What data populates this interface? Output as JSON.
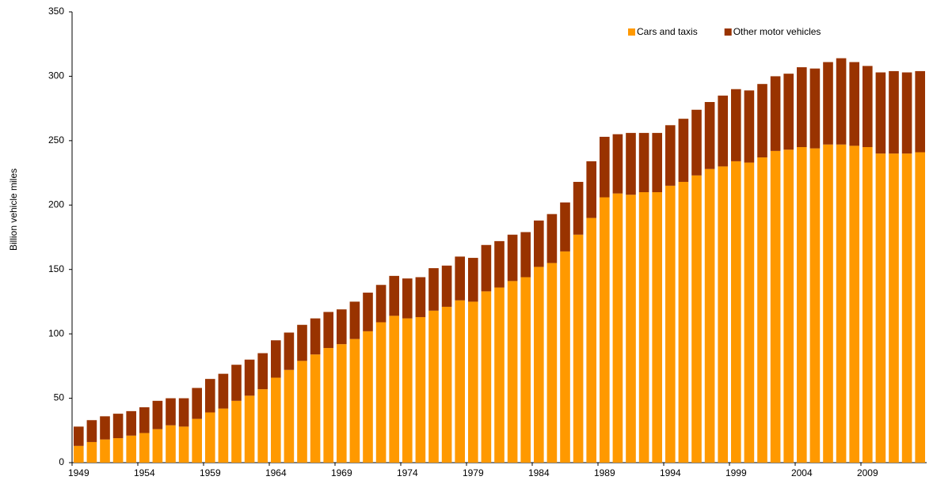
{
  "chart_data": {
    "type": "stacked-bar",
    "y_label": "Billion vehicle miles",
    "categories": [
      "1949",
      null,
      null,
      null,
      null,
      "1954",
      null,
      null,
      null,
      null,
      "1959",
      null,
      null,
      null,
      null,
      "1964",
      null,
      null,
      null,
      null,
      "1969",
      null,
      null,
      null,
      null,
      "1974",
      null,
      null,
      null,
      null,
      "1979",
      null,
      null,
      null,
      null,
      "1984",
      null,
      null,
      null,
      null,
      "1989",
      null,
      null,
      null,
      null,
      "1994",
      null,
      null,
      null,
      null,
      "1999",
      null,
      null,
      null,
      null,
      "2004",
      null,
      null,
      null,
      null,
      "2009",
      null,
      null,
      null,
      null
    ],
    "series": [
      {
        "name": "Cars and taxis",
        "color": "#ff9900",
        "values": [
          13,
          16,
          18,
          19,
          21,
          23,
          26,
          29,
          28,
          34,
          39,
          42,
          48,
          52,
          57,
          66,
          72,
          79,
          84,
          89,
          92,
          96,
          102,
          109,
          114,
          112,
          113,
          118,
          121,
          126,
          125,
          133,
          136,
          141,
          144,
          152,
          155,
          164,
          177,
          190,
          206,
          209,
          208,
          210,
          210,
          215,
          218,
          223,
          228,
          230,
          234,
          233,
          237,
          242,
          243,
          245,
          244,
          247,
          247,
          246,
          245,
          240,
          240,
          240,
          241
        ]
      },
      {
        "name": "Other motor vehicles",
        "color": "#993300",
        "values": [
          15,
          17,
          18,
          19,
          19,
          20,
          22,
          21,
          22,
          24,
          26,
          27,
          28,
          28,
          28,
          29,
          29,
          28,
          28,
          28,
          27,
          29,
          30,
          29,
          31,
          31,
          31,
          33,
          32,
          34,
          34,
          36,
          36,
          36,
          35,
          36,
          38,
          38,
          41,
          44,
          47,
          46,
          48,
          46,
          46,
          47,
          49,
          51,
          52,
          55,
          56,
          56,
          57,
          58,
          59,
          62,
          62,
          64,
          67,
          65,
          63,
          63,
          64,
          63,
          63
        ]
      }
    ],
    "ylim": [
      0,
      350
    ],
    "yticks": [
      0,
      50,
      100,
      150,
      200,
      250,
      300,
      350
    ],
    "legend": "top-right"
  }
}
